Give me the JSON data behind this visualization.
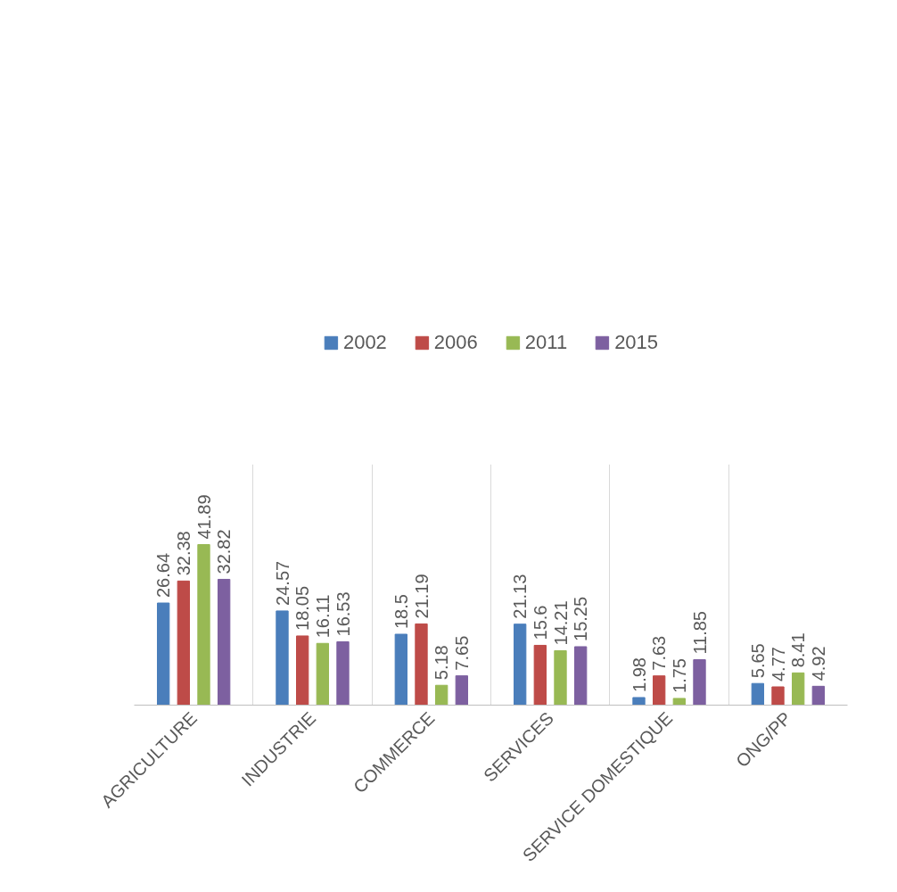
{
  "chart_data": {
    "type": "bar",
    "categories": [
      "AGRICULTURE",
      "INDUSTRIE",
      "COMMERCE",
      "SERVICES",
      "SERVICE DOMESTIQUE",
      "ONG/PP"
    ],
    "series": [
      {
        "name": "2002",
        "color": "#4a7ebb",
        "values": [
          26.64,
          24.57,
          18.5,
          21.13,
          1.98,
          5.65
        ]
      },
      {
        "name": "2006",
        "color": "#be4b48",
        "values": [
          32.38,
          18.05,
          21.19,
          15.6,
          7.63,
          4.77
        ]
      },
      {
        "name": "2011",
        "color": "#98b954",
        "values": [
          41.89,
          16.11,
          5.18,
          14.21,
          1.75,
          8.41
        ]
      },
      {
        "name": "2015",
        "color": "#7d60a0",
        "values": [
          32.82,
          16.53,
          7.65,
          15.25,
          11.85,
          4.92
        ]
      }
    ],
    "data_labels": true,
    "legend": "top",
    "grid": "x"
  }
}
